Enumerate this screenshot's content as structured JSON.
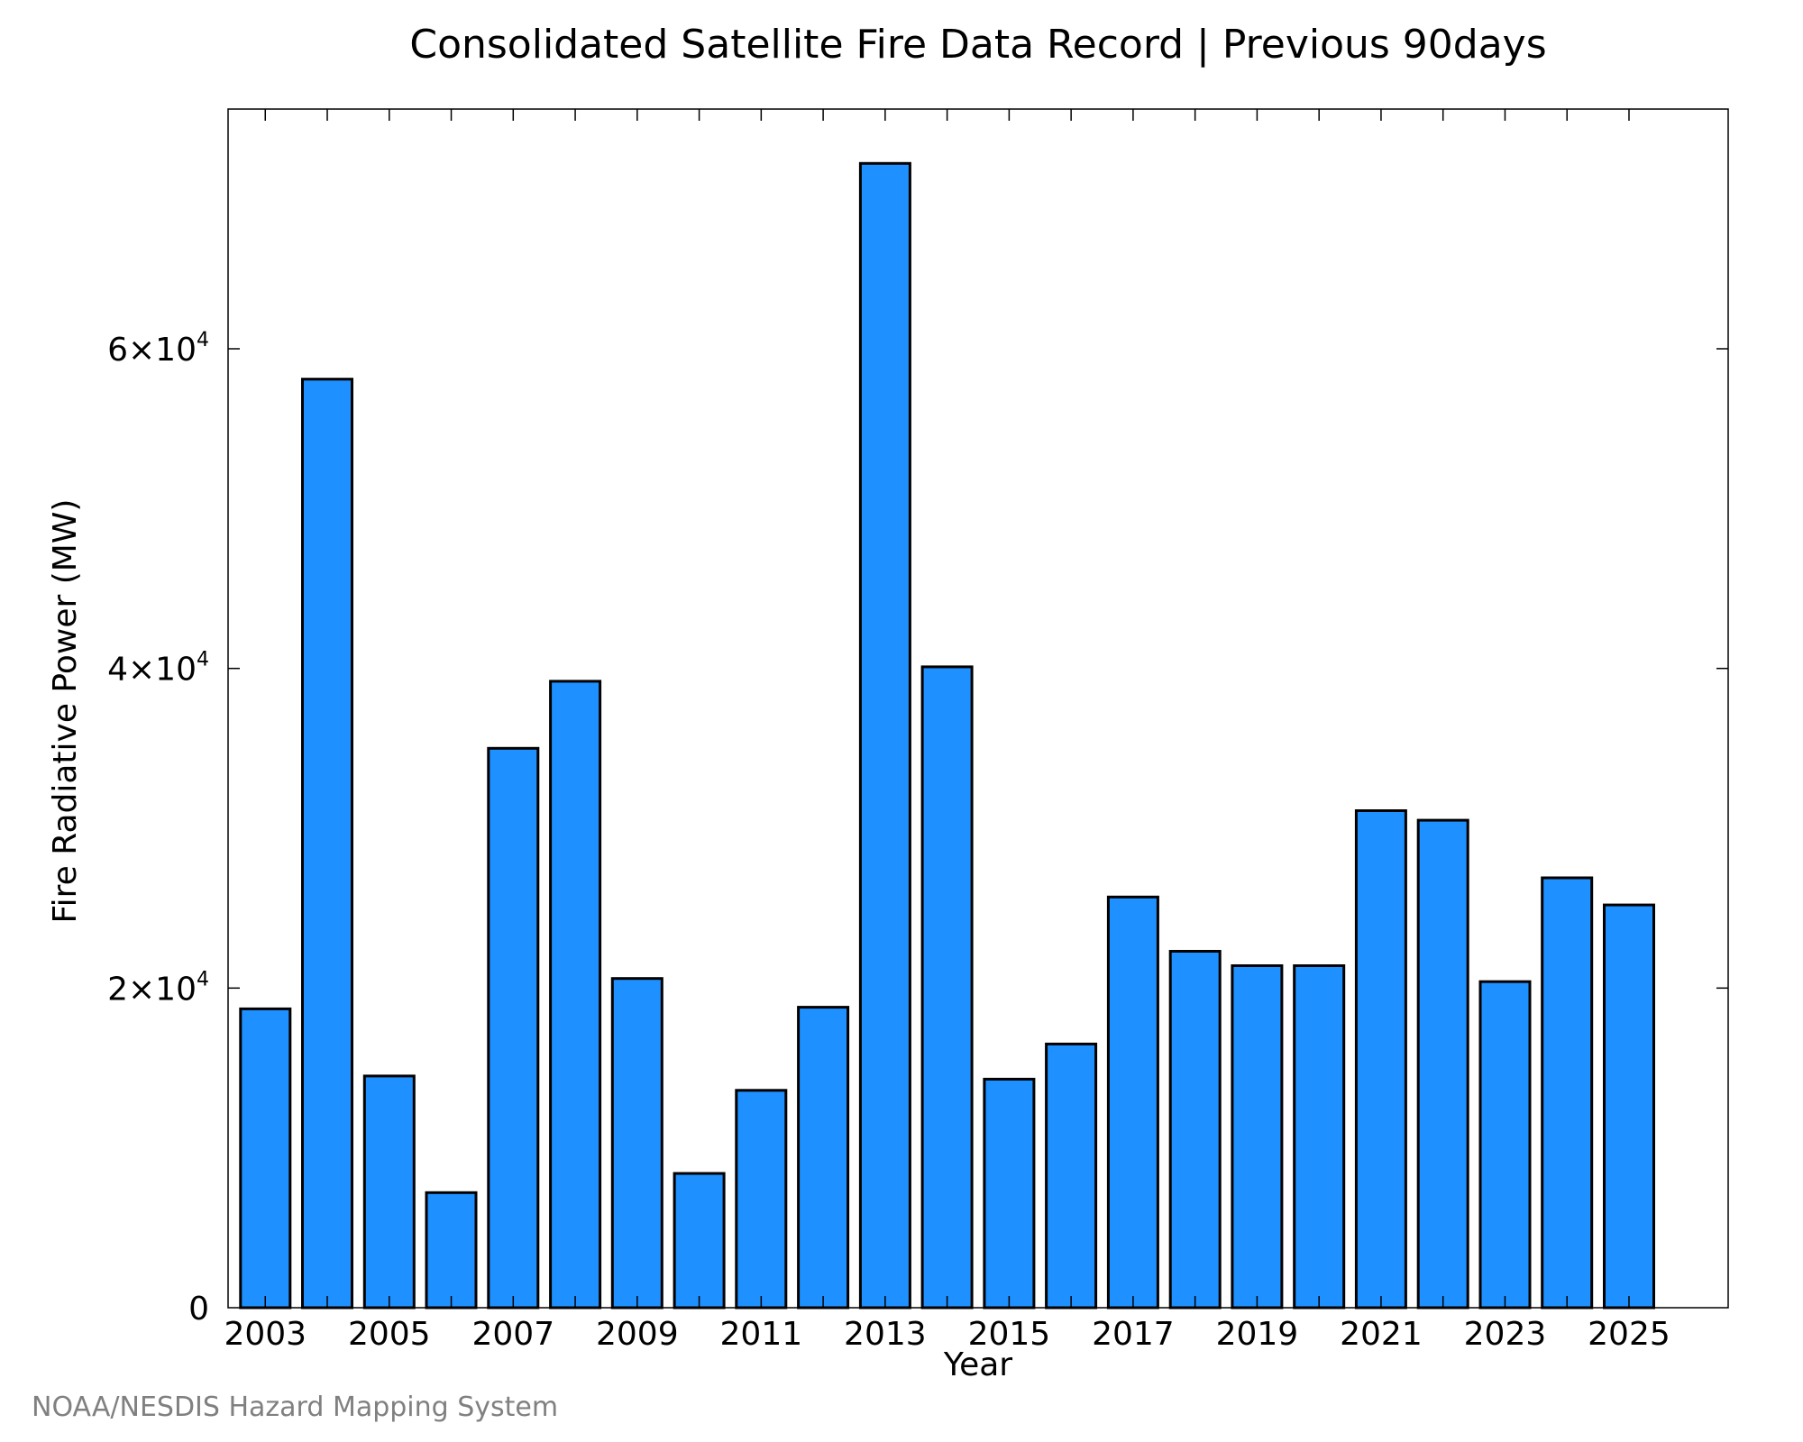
{
  "credit": "NOAA/NESDIS Hazard Mapping System",
  "colors": {
    "bar_fill": "#1e90ff",
    "bar_stroke": "#000000",
    "credit_text": "#808080"
  },
  "chart_data": {
    "type": "bar",
    "title": "Consolidated Satellite Fire Data Record | Previous 90days",
    "xlabel": "Year",
    "ylabel": "Fire Radiative Power (MW)",
    "x": [
      2003,
      2004,
      2005,
      2006,
      2007,
      2008,
      2009,
      2010,
      2011,
      2012,
      2013,
      2014,
      2015,
      2016,
      2017,
      2018,
      2019,
      2020,
      2021,
      2022,
      2023,
      2024,
      2025
    ],
    "values": [
      18700,
      58100,
      14500,
      7200,
      35000,
      39200,
      20600,
      8400,
      13600,
      18800,
      71600,
      40100,
      14300,
      16500,
      25700,
      22300,
      21400,
      21400,
      31100,
      30500,
      20400,
      26900,
      25200
    ],
    "xlim": [
      2002.4,
      2026.6
    ],
    "ylim": [
      0,
      75000
    ],
    "x_ticks": [
      {
        "value": 2003,
        "label": "2003"
      },
      {
        "value": 2005,
        "label": "2005"
      },
      {
        "value": 2007,
        "label": "2007"
      },
      {
        "value": 2009,
        "label": "2009"
      },
      {
        "value": 2011,
        "label": "2011"
      },
      {
        "value": 2013,
        "label": "2013"
      },
      {
        "value": 2015,
        "label": "2015"
      },
      {
        "value": 2017,
        "label": "2017"
      },
      {
        "value": 2019,
        "label": "2019"
      },
      {
        "value": 2021,
        "label": "2021"
      },
      {
        "value": 2023,
        "label": "2023"
      },
      {
        "value": 2025,
        "label": "2025"
      }
    ],
    "x_minor_ticks": [
      2004,
      2006,
      2008,
      2010,
      2012,
      2014,
      2016,
      2018,
      2020,
      2022,
      2024
    ],
    "y_ticks": [
      {
        "value": 0,
        "mantissa": "0",
        "exp": ""
      },
      {
        "value": 20000,
        "mantissa": "2×10",
        "exp": "4"
      },
      {
        "value": 40000,
        "mantissa": "4×10",
        "exp": "4"
      },
      {
        "value": 60000,
        "mantissa": "6×10",
        "exp": "4"
      }
    ],
    "grid": false,
    "legend": "none"
  }
}
